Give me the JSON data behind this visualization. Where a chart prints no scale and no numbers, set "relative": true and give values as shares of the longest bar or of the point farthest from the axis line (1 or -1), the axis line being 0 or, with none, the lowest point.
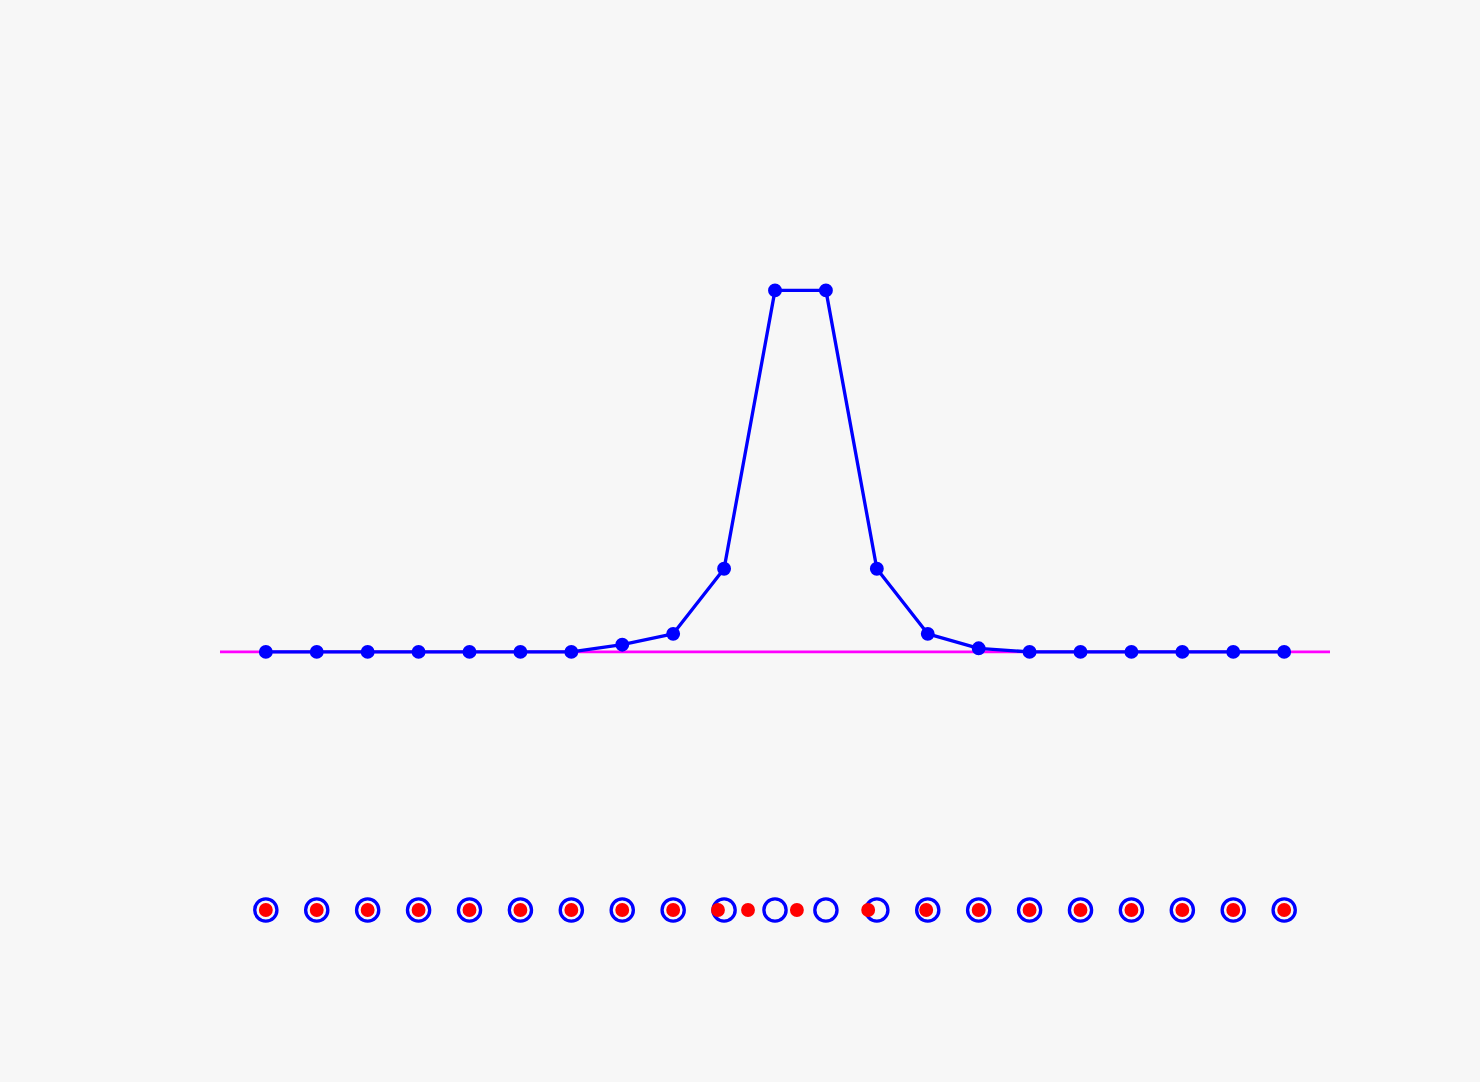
{
  "chart_data": {
    "type": "line",
    "relative": true,
    "categories": [
      null,
      null,
      null,
      null,
      null,
      null,
      null,
      null,
      null,
      null,
      null,
      null,
      null,
      null,
      null,
      null,
      null,
      null,
      null,
      null,
      null
    ],
    "marker": "circle",
    "series": [
      {
        "color": "#0000ff",
        "values": [
          0,
          0,
          0,
          0,
          0,
          0,
          0,
          0.02,
          0.05,
          0.23,
          1,
          1,
          0.23,
          0.05,
          0.01,
          0,
          0,
          0,
          0,
          0,
          0
        ]
      }
    ],
    "ref_lines": [
      {
        "axis": "y",
        "value": 0,
        "color": "#ff00ff"
      }
    ]
  }
}
